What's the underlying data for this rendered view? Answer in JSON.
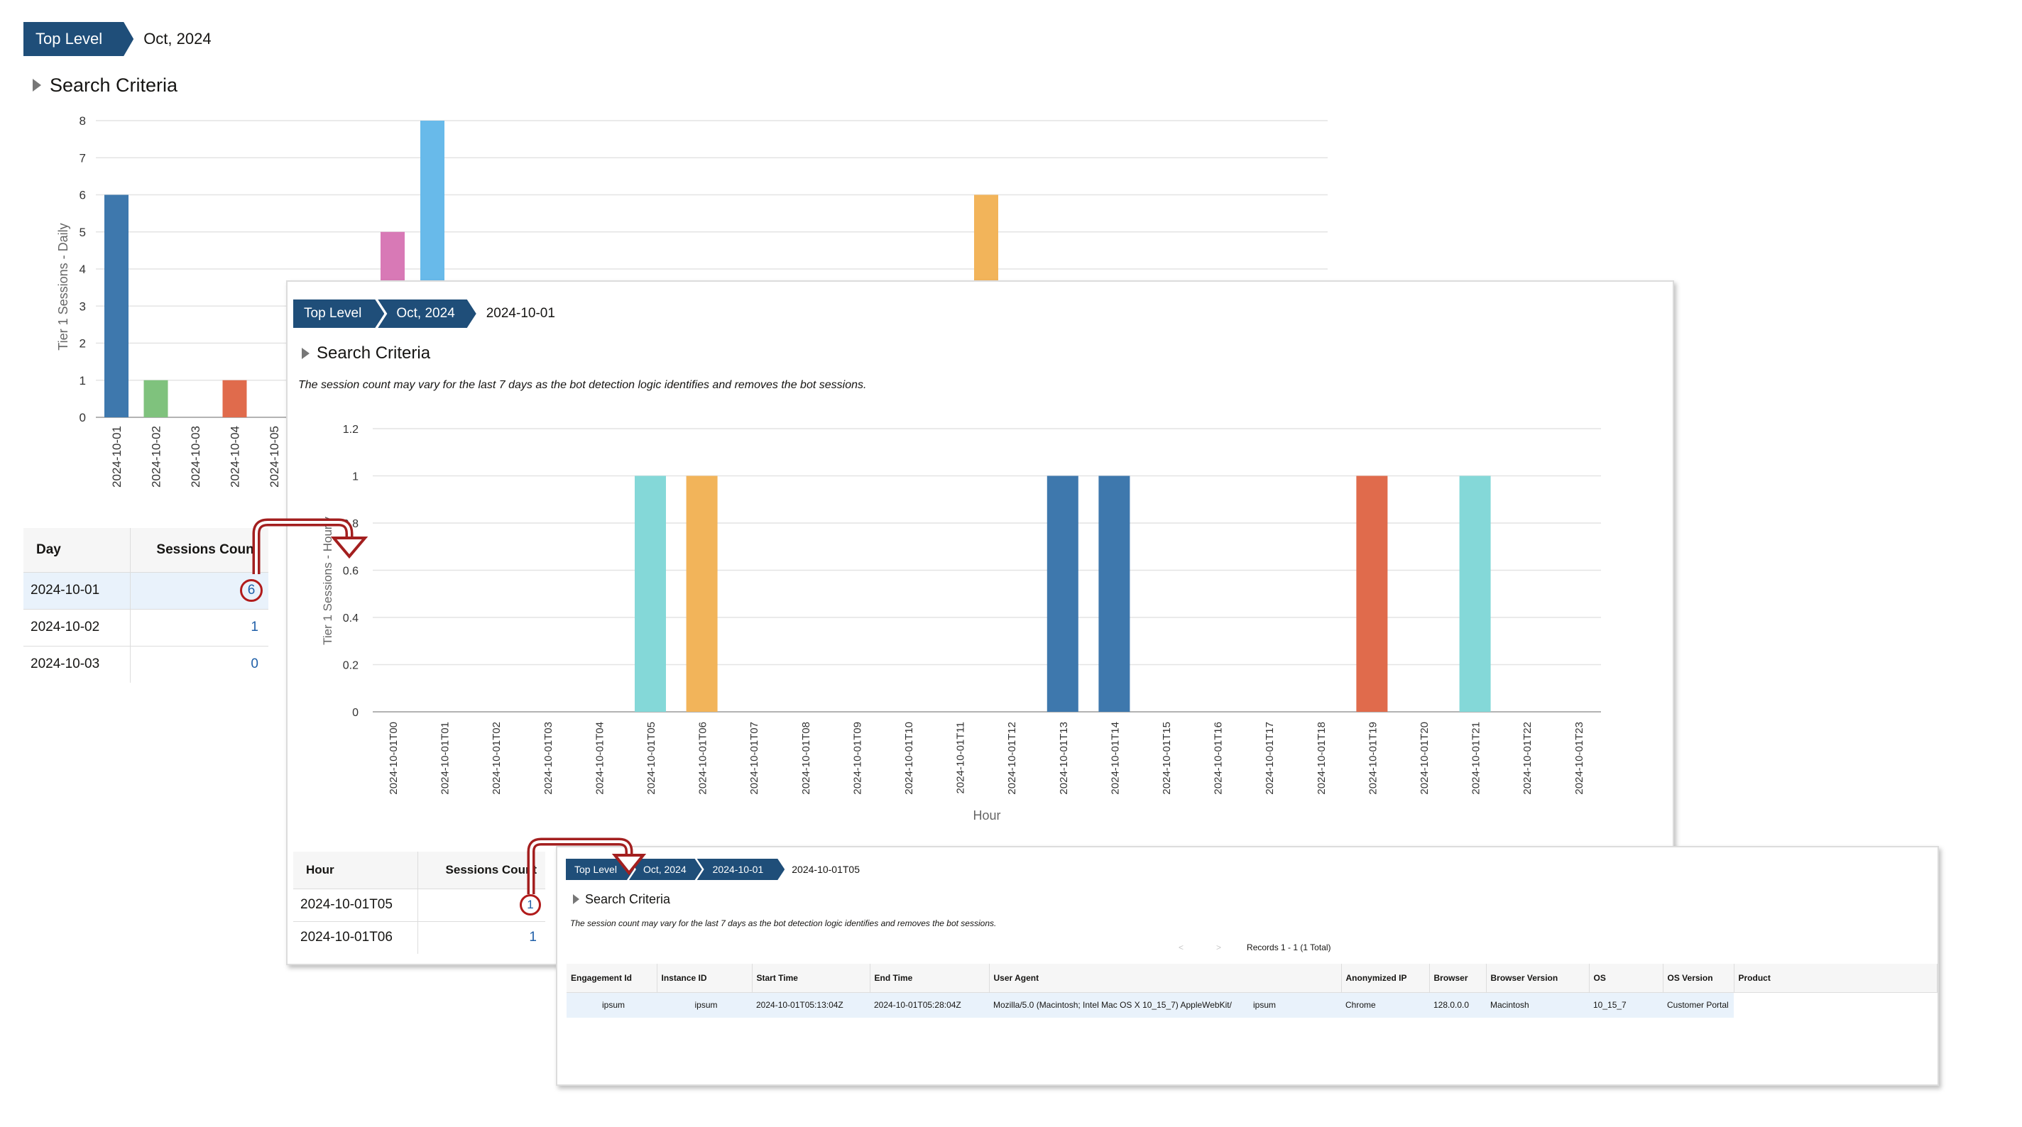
{
  "colors": {
    "breadcrumb_bg": "#1f4e79",
    "arrow": "#a31f1f",
    "link": "#1f5fa8",
    "palette": [
      "#3e78ad",
      "#7fc27d",
      "#e06b4c",
      "#d879b6",
      "#68baea",
      "#f2b45a",
      "#84d8d8"
    ]
  },
  "level1": {
    "breadcrumb": [
      "Top Level"
    ],
    "current": "Oct, 2024",
    "search_criteria": "Search Criteria",
    "table": {
      "headers": [
        "Day",
        "Sessions Count"
      ],
      "rows": [
        {
          "day": "2024-10-01",
          "count": "6"
        },
        {
          "day": "2024-10-02",
          "count": "1"
        },
        {
          "day": "2024-10-03",
          "count": "0"
        }
      ]
    }
  },
  "level2": {
    "breadcrumb": [
      "Top Level",
      "Oct, 2024"
    ],
    "current": "2024-10-01",
    "search_criteria": "Search Criteria",
    "notice": "The session count may vary for the last 7 days as the bot detection logic identifies and removes the bot sessions.",
    "table": {
      "headers": [
        "Hour",
        "Sessions Count"
      ],
      "rows": [
        {
          "hour": "2024-10-01T05",
          "count": "1"
        },
        {
          "hour": "2024-10-01T06",
          "count": "1"
        }
      ]
    }
  },
  "level3": {
    "breadcrumb": [
      "Top Level",
      "Oct, 2024",
      "2024-10-01"
    ],
    "current": "2024-10-01T05",
    "search_criteria": "Search Criteria",
    "notice": "The session count may vary for the last 7 days as the bot detection logic identifies and removes the bot sessions.",
    "pager": {
      "prev": "<",
      "next": ">",
      "records": "Records 1 - 1 (1 Total)"
    },
    "table": {
      "headers": [
        "Engagement Id",
        "Instance ID",
        "Start Time",
        "End Time",
        "User Agent",
        "",
        "Anonymized IP",
        "Browser",
        "Browser Version",
        "OS",
        "OS Version",
        "Product"
      ],
      "rows": [
        [
          "ipsum",
          "ipsum",
          "2024-10-01T05:13:04Z",
          "2024-10-01T05:28:04Z",
          "Mozilla/5.0 (Macintosh; Intel Mac OS X 10_15_7) AppleWebKit/",
          "ipsum",
          "ipsum",
          "Chrome",
          "128.0.0.0",
          "Macintosh",
          "10_15_7",
          "Customer Portal"
        ]
      ]
    }
  },
  "chart_data": [
    {
      "type": "bar",
      "ylabel": "Tier 1 Sessions - Daily",
      "xlabel": "",
      "ylim": [
        0,
        8
      ],
      "yticks": [
        0,
        1,
        2,
        3,
        4,
        5,
        6,
        7,
        8
      ],
      "grid": true,
      "categories": [
        "2024-10-01",
        "2024-10-02",
        "2024-10-03",
        "2024-10-04",
        "2024-10-05"
      ],
      "values": [
        6,
        1,
        0,
        1,
        null
      ],
      "partially_visible_bars": [
        {
          "value_at_least": 5,
          "color": "#d879b6"
        },
        {
          "value": 8,
          "color": "#68baea"
        },
        {
          "value": 6,
          "color": "#f2b45a"
        }
      ]
    },
    {
      "type": "bar",
      "ylabel": "Tier 1 Sessions - Hourly",
      "xlabel": "Hour",
      "ylim": [
        0,
        1.2
      ],
      "yticks": [
        "0",
        "0.2",
        "0.4",
        "0.6",
        "0.8",
        "1",
        "1.2"
      ],
      "grid": true,
      "categories": [
        "2024-10-01T00",
        "2024-10-01T01",
        "2024-10-01T02",
        "2024-10-01T03",
        "2024-10-01T04",
        "2024-10-01T05",
        "2024-10-01T06",
        "2024-10-01T07",
        "2024-10-01T08",
        "2024-10-01T09",
        "2024-10-01T10",
        "2024-10-01T11",
        "2024-10-01T12",
        "2024-10-01T13",
        "2024-10-01T14",
        "2024-10-01T15",
        "2024-10-01T16",
        "2024-10-01T17",
        "2024-10-01T18",
        "2024-10-01T19",
        "2024-10-01T20",
        "2024-10-01T21",
        "2024-10-01T22",
        "2024-10-01T23"
      ],
      "values": [
        0,
        0,
        0,
        0,
        0,
        1,
        1,
        0,
        0,
        0,
        0,
        0,
        0,
        1,
        1,
        0,
        0,
        0,
        0,
        1,
        0,
        1,
        0,
        0
      ],
      "bar_colors": {
        "5": "#84d8d8",
        "6": "#f2b45a",
        "13": "#3e78ad",
        "14": "#3e78ad",
        "19": "#e06b4c",
        "21": "#84d8d8"
      }
    }
  ]
}
